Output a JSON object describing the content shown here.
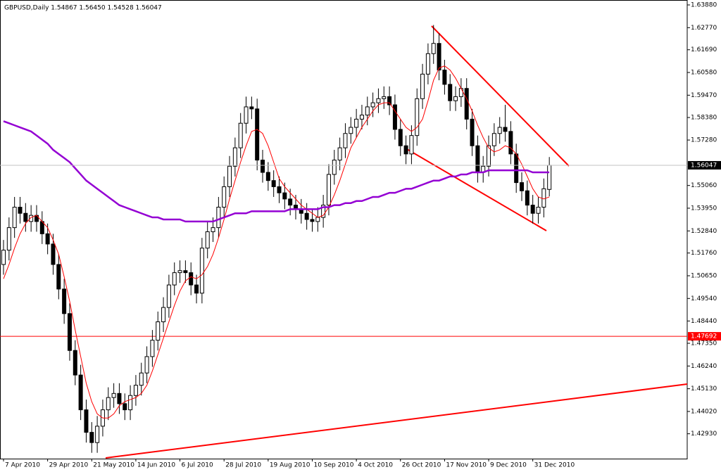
{
  "chart_data": {
    "type": "candlestick",
    "title": "GBPUSD,Daily  1.54867 1.56450 1.54528 1.56047",
    "categories": [
      "7 Apr 2010",
      null,
      null,
      null,
      null,
      null,
      null,
      null,
      "29 Apr 2010",
      null,
      null,
      null,
      null,
      null,
      null,
      null,
      "21 May 2010",
      null,
      null,
      null,
      null,
      null,
      null,
      null,
      "14 Jun 2010",
      null,
      null,
      null,
      null,
      null,
      null,
      null,
      "6 Jul 2010",
      null,
      null,
      null,
      null,
      null,
      null,
      null,
      "28 Jul 2010",
      null,
      null,
      null,
      null,
      null,
      null,
      null,
      "19 Aug 2010",
      null,
      null,
      null,
      null,
      null,
      null,
      null,
      "10 Sep 2010",
      null,
      null,
      null,
      null,
      null,
      null,
      null,
      "4 Oct 2010",
      null,
      null,
      null,
      null,
      null,
      null,
      null,
      "26 Oct 2010",
      null,
      null,
      null,
      null,
      null,
      null,
      null,
      "17 Nov 2010",
      null,
      null,
      null,
      null,
      null,
      null,
      null,
      "9 Dec 2010",
      null,
      null,
      null,
      null,
      null,
      null,
      null,
      "31 Dec 2010",
      null,
      null,
      null
    ],
    "open": [
      1.512,
      1.519,
      1.53,
      1.54,
      1.537,
      1.533,
      1.536,
      1.533,
      1.527,
      1.522,
      1.512,
      1.5,
      1.488,
      1.47,
      1.458,
      1.441,
      1.43,
      1.425,
      1.433,
      1.441,
      1.447,
      1.449,
      1.444,
      1.441,
      1.448,
      1.453,
      1.459,
      1.467,
      1.475,
      1.484,
      1.491,
      1.502,
      1.508,
      1.509,
      1.508,
      1.502,
      1.498,
      1.52,
      1.528,
      1.53,
      1.54,
      1.55,
      1.56,
      1.569,
      1.581,
      1.589,
      1.588,
      1.563,
      1.557,
      1.553,
      1.55,
      1.547,
      1.544,
      1.541,
      1.539,
      1.537,
      1.534,
      1.533,
      1.535,
      1.541,
      1.556,
      1.563,
      1.569,
      1.576,
      1.579,
      1.583,
      1.585,
      1.589,
      1.591,
      1.593,
      1.594,
      1.59,
      1.578,
      1.57,
      1.566,
      1.575,
      1.593,
      1.605,
      1.615,
      1.62,
      1.607,
      1.6,
      1.592,
      1.594,
      1.598,
      1.583,
      1.57,
      1.557,
      1.56,
      1.57,
      1.576,
      1.579,
      1.577,
      1.566,
      1.552,
      1.548,
      1.541,
      1.537,
      1.54,
      1.54867
    ],
    "high": [
      1.524,
      1.535,
      1.545,
      1.545,
      1.542,
      1.541,
      1.541,
      1.538,
      1.532,
      1.527,
      1.517,
      1.505,
      1.493,
      1.475,
      1.463,
      1.446,
      1.435,
      1.438,
      1.446,
      1.452,
      1.454,
      1.454,
      1.449,
      1.453,
      1.458,
      1.464,
      1.472,
      1.48,
      1.489,
      1.496,
      1.507,
      1.513,
      1.514,
      1.514,
      1.513,
      1.507,
      1.525,
      1.533,
      1.535,
      1.545,
      1.555,
      1.565,
      1.574,
      1.586,
      1.594,
      1.594,
      1.593,
      1.568,
      1.562,
      1.558,
      1.555,
      1.552,
      1.549,
      1.546,
      1.544,
      1.542,
      1.539,
      1.54,
      1.546,
      1.561,
      1.568,
      1.574,
      1.581,
      1.584,
      1.588,
      1.59,
      1.594,
      1.596,
      1.598,
      1.599,
      1.599,
      1.595,
      1.583,
      1.575,
      1.58,
      1.598,
      1.61,
      1.62,
      1.629,
      1.625,
      1.612,
      1.605,
      1.599,
      1.603,
      1.603,
      1.588,
      1.575,
      1.565,
      1.575,
      1.581,
      1.584,
      1.59,
      1.582,
      1.571,
      1.557,
      1.553,
      1.546,
      1.545,
      1.554,
      1.5645
    ],
    "low": [
      1.507,
      1.514,
      1.525,
      1.532,
      1.528,
      1.528,
      1.528,
      1.522,
      1.517,
      1.507,
      1.495,
      1.483,
      1.465,
      1.453,
      1.436,
      1.425,
      1.42,
      1.42,
      1.428,
      1.436,
      1.442,
      1.439,
      1.436,
      1.436,
      1.443,
      1.448,
      1.454,
      1.462,
      1.47,
      1.479,
      1.486,
      1.497,
      1.503,
      1.503,
      1.497,
      1.493,
      1.493,
      1.515,
      1.523,
      1.525,
      1.535,
      1.545,
      1.555,
      1.564,
      1.576,
      1.583,
      1.558,
      1.552,
      1.548,
      1.545,
      1.542,
      1.539,
      1.536,
      1.534,
      1.532,
      1.529,
      1.528,
      1.528,
      1.53,
      1.536,
      1.551,
      1.558,
      1.564,
      1.571,
      1.574,
      1.578,
      1.58,
      1.584,
      1.586,
      1.588,
      1.585,
      1.573,
      1.565,
      1.561,
      1.561,
      1.57,
      1.588,
      1.6,
      1.61,
      1.602,
      1.595,
      1.587,
      1.587,
      1.589,
      1.578,
      1.565,
      1.552,
      1.552,
      1.555,
      1.565,
      1.571,
      1.572,
      1.561,
      1.547,
      1.543,
      1.536,
      1.532,
      1.532,
      1.535,
      1.54528
    ],
    "close": [
      1.519,
      1.53,
      1.54,
      1.537,
      1.533,
      1.536,
      1.533,
      1.527,
      1.522,
      1.512,
      1.5,
      1.488,
      1.47,
      1.458,
      1.441,
      1.43,
      1.425,
      1.433,
      1.441,
      1.447,
      1.449,
      1.444,
      1.441,
      1.448,
      1.453,
      1.459,
      1.467,
      1.475,
      1.484,
      1.491,
      1.502,
      1.508,
      1.509,
      1.508,
      1.502,
      1.498,
      1.52,
      1.528,
      1.53,
      1.54,
      1.55,
      1.56,
      1.569,
      1.581,
      1.589,
      1.588,
      1.563,
      1.557,
      1.553,
      1.55,
      1.547,
      1.544,
      1.541,
      1.539,
      1.537,
      1.534,
      1.533,
      1.535,
      1.541,
      1.556,
      1.563,
      1.569,
      1.576,
      1.579,
      1.583,
      1.585,
      1.589,
      1.591,
      1.593,
      1.594,
      1.59,
      1.578,
      1.57,
      1.566,
      1.575,
      1.593,
      1.605,
      1.615,
      1.62,
      1.607,
      1.6,
      1.592,
      1.594,
      1.598,
      1.583,
      1.57,
      1.557,
      1.56,
      1.57,
      1.576,
      1.579,
      1.577,
      1.566,
      1.552,
      1.548,
      1.541,
      1.537,
      1.54,
      1.549,
      1.56047
    ],
    "lines": [
      {
        "color": "#ff0000",
        "width": 1,
        "values": [
          1.505,
          1.512,
          1.52,
          1.527,
          1.532,
          1.535,
          1.536,
          1.533,
          1.53,
          1.524,
          1.517,
          1.506,
          1.494,
          1.48,
          1.467,
          1.454,
          1.445,
          1.439,
          1.437,
          1.437,
          1.439,
          1.443,
          1.445,
          1.446,
          1.447,
          1.449,
          1.453,
          1.46,
          1.468,
          1.476,
          1.484,
          1.492,
          1.499,
          1.504,
          1.506,
          1.505,
          1.507,
          1.511,
          1.517,
          1.525,
          1.534,
          1.544,
          1.553,
          1.562,
          1.57,
          1.577,
          1.578,
          1.576,
          1.57,
          1.562,
          1.554,
          1.55,
          1.547,
          1.544,
          1.541,
          1.539,
          1.537,
          1.535,
          1.536,
          1.54,
          1.546,
          1.553,
          1.561,
          1.569,
          1.574,
          1.579,
          1.583,
          1.587,
          1.59,
          1.591,
          1.591,
          1.587,
          1.583,
          1.579,
          1.577,
          1.579,
          1.583,
          1.592,
          1.602,
          1.608,
          1.609,
          1.607,
          1.603,
          1.598,
          1.593,
          1.587,
          1.58,
          1.574,
          1.569,
          1.567,
          1.568,
          1.57,
          1.569,
          1.566,
          1.561,
          1.555,
          1.549,
          1.545,
          1.544,
          1.545
        ]
      },
      {
        "color": "#9400d3",
        "width": 2.5,
        "values": [
          1.582,
          1.581,
          1.58,
          1.579,
          1.578,
          1.577,
          1.575,
          1.573,
          1.571,
          1.568,
          1.566,
          1.564,
          1.562,
          1.559,
          1.556,
          1.553,
          1.551,
          1.549,
          1.547,
          1.545,
          1.543,
          1.541,
          1.54,
          1.539,
          1.538,
          1.537,
          1.536,
          1.535,
          1.535,
          1.534,
          1.534,
          1.534,
          1.534,
          1.533,
          1.533,
          1.533,
          1.533,
          1.533,
          1.533,
          1.534,
          1.535,
          1.536,
          1.537,
          1.537,
          1.537,
          1.538,
          1.538,
          1.538,
          1.538,
          1.538,
          1.538,
          1.538,
          1.539,
          1.539,
          1.539,
          1.539,
          1.539,
          1.539,
          1.54,
          1.54,
          1.541,
          1.541,
          1.542,
          1.542,
          1.543,
          1.543,
          1.544,
          1.545,
          1.545,
          1.546,
          1.547,
          1.547,
          1.548,
          1.549,
          1.549,
          1.55,
          1.551,
          1.552,
          1.553,
          1.553,
          1.554,
          1.555,
          1.555,
          1.556,
          1.556,
          1.557,
          1.557,
          1.557,
          1.558,
          1.558,
          1.558,
          1.558,
          1.558,
          1.558,
          1.558,
          1.558,
          1.557,
          1.557,
          1.557,
          1.557
        ]
      }
    ],
    "hlines": [
      {
        "value": 1.47692,
        "label": "1.47692",
        "color": "#ff0000"
      }
    ],
    "last_price": {
      "value": 1.56047,
      "label": "1.56047"
    },
    "ylim": [
      1.41715,
      1.64121
    ],
    "yticks": [
      {
        "value": 1.6388,
        "label": "1.63880"
      },
      {
        "value": 1.6277,
        "label": "1.62770"
      },
      {
        "value": 1.6169,
        "label": "1.61690"
      },
      {
        "value": 1.6058,
        "label": "1.60580"
      },
      {
        "value": 1.5947,
        "label": "1.59470"
      },
      {
        "value": 1.5838,
        "label": "1.58380"
      },
      {
        "value": 1.5728,
        "label": "1.57280"
      },
      {
        "value": 1.5506,
        "label": "1.55060"
      },
      {
        "value": 1.5395,
        "label": "1.53950"
      },
      {
        "value": 1.5284,
        "label": "1.52840"
      },
      {
        "value": 1.5176,
        "label": "1.51760"
      },
      {
        "value": 1.5065,
        "label": "1.50650"
      },
      {
        "value": 1.4954,
        "label": "1.49540"
      },
      {
        "value": 1.4844,
        "label": "1.48440"
      },
      {
        "value": 1.4735,
        "label": "1.47350"
      },
      {
        "value": 1.4624,
        "label": "1.46240"
      },
      {
        "value": 1.4513,
        "label": "1.45130"
      },
      {
        "value": 1.4402,
        "label": "1.44020"
      },
      {
        "value": 1.4293,
        "label": "1.42930"
      }
    ],
    "grid": false
  }
}
